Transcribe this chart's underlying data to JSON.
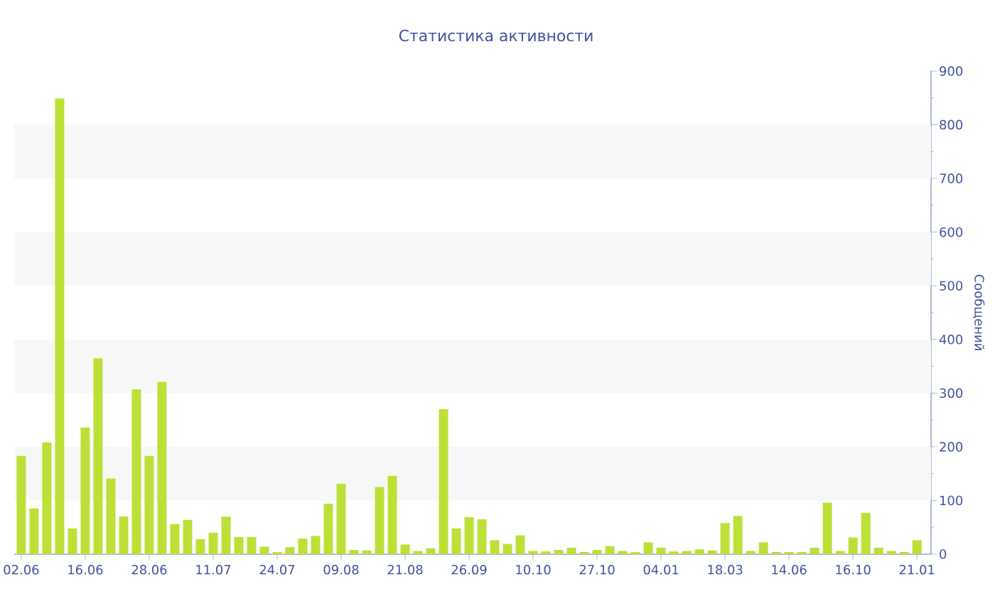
{
  "chart_data": {
    "type": "bar",
    "title": "Статистика активности",
    "ylabel": "Сообщений",
    "categories": [
      "02.06",
      null,
      null,
      null,
      null,
      "16.06",
      null,
      null,
      null,
      null,
      "28.06",
      null,
      null,
      null,
      null,
      "11.07",
      null,
      null,
      null,
      null,
      "24.07",
      null,
      null,
      null,
      null,
      "09.08",
      null,
      null,
      null,
      null,
      "21.08",
      null,
      null,
      null,
      null,
      "26.09",
      null,
      null,
      null,
      null,
      "10.10",
      null,
      null,
      null,
      null,
      "27.10",
      null,
      null,
      null,
      null,
      "04.01",
      null,
      null,
      null,
      null,
      "18.03",
      null,
      null,
      null,
      null,
      "14.06",
      null,
      null,
      null,
      null,
      "16.10",
      null,
      null,
      null,
      null,
      "21.01"
    ],
    "values": [
      183,
      85,
      208,
      849,
      48,
      236,
      365,
      141,
      70,
      307,
      183,
      321,
      56,
      64,
      28,
      40,
      70,
      32,
      32,
      14,
      4,
      13,
      29,
      34,
      94,
      131,
      8,
      7,
      125,
      146,
      18,
      6,
      11,
      270,
      48,
      69,
      65,
      26,
      19,
      35,
      6,
      5,
      8,
      12,
      4,
      8,
      15,
      6,
      4,
      22,
      12,
      5,
      6,
      9,
      7,
      58,
      71,
      6,
      22,
      4,
      4,
      4,
      12,
      96,
      6,
      31,
      77,
      12,
      6,
      4,
      26
    ],
    "color": "#bde038",
    "ylim": [
      0,
      900
    ],
    "yticks": [
      0,
      100,
      200,
      300,
      400,
      500,
      600,
      700,
      800,
      900
    ],
    "bands": [
      {
        "axis": "y",
        "from": 100,
        "to": 200,
        "color": "#f7f7f7"
      },
      {
        "axis": "y",
        "from": 300,
        "to": 400,
        "color": "#f7f7f7"
      },
      {
        "axis": "y",
        "from": 500,
        "to": 600,
        "color": "#f7f7f7"
      },
      {
        "axis": "y",
        "from": 700,
        "to": 800,
        "color": "#f7f7f7"
      }
    ]
  }
}
